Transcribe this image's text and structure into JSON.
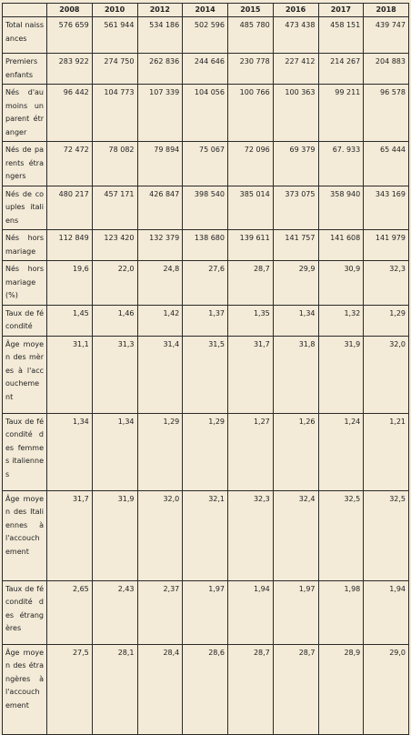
{
  "years": [
    "2008",
    "2010",
    "2012",
    "2014",
    "2015",
    "2016",
    "2017",
    "2018"
  ],
  "rows": [
    {
      "label": "Total naissances",
      "values": [
        "576 659",
        "561 944",
        "534 186",
        "502 596",
        "485 780",
        "473 438",
        "458 151",
        "439 747"
      ]
    },
    {
      "label": "Premiers enfants",
      "values": [
        "283 922",
        "274 750",
        "262 836",
        "244 646",
        "230 778",
        "227 412",
        "214 267",
        "204 883"
      ]
    },
    {
      "label": "Nés d'au moins un parent étranger",
      "values": [
        "96 442",
        "104 773",
        "107 339",
        "104 056",
        "100 766",
        "100 363",
        "99 211",
        "96 578"
      ]
    },
    {
      "label": "Nés de parents étrangers",
      "values": [
        "72 472",
        "78 082",
        "79 894",
        "75 067",
        "72 096",
        "69 379",
        "67. 933",
        "65 444"
      ]
    },
    {
      "label": "Nés de couples italiens",
      "values": [
        "480 217",
        "457 171",
        "426 847",
        "398 540",
        "385 014",
        "373 075",
        "358 940",
        "343 169"
      ]
    },
    {
      "label": "Nés hors mariage",
      "values": [
        "112 849",
        "123 420",
        "132 379",
        "138 680",
        "139 611",
        "141 757",
        "141 608",
        "141 979"
      ]
    },
    {
      "label": "Nés hors mariage (%)",
      "values": [
        "19,6",
        "22,0",
        "24,8",
        "27,6",
        "28,7",
        "29,9",
        "30,9",
        "32,3"
      ]
    },
    {
      "label": "Taux de fécondité",
      "values": [
        "1,45",
        "1,46",
        "1,42",
        "1,37",
        "1,35",
        "1,34",
        "1,32",
        "1,29"
      ]
    },
    {
      "label": "Âge moyen des mères à l'accouchement",
      "values": [
        "31,1",
        "31,3",
        "31,4",
        "31,5",
        "31,7",
        "31,8",
        "31,9",
        "32,0"
      ]
    },
    {
      "label": "Taux de fécondité des femmes italiennes",
      "values": [
        "1,34",
        "1,34",
        "1,29",
        "1,29",
        "1,27",
        "1,26",
        "1,24",
        "1,21"
      ]
    },
    {
      "label": "Âge moyen des Italiennes à l'accouchement",
      "values": [
        "31,7",
        "31,9",
        "32,0",
        "32,1",
        "32,3",
        "32,4",
        "32,5",
        "32,5"
      ]
    },
    {
      "label": "Taux de fécondité des étrangères",
      "values": [
        "2,65",
        "2,43",
        "2,37",
        "1,97",
        "1,94",
        "1,97",
        "1,98",
        "1,94"
      ]
    },
    {
      "label": "Âge moyen des étrangères à l'accouchement",
      "values": [
        "27,5",
        "28,1",
        "28,4",
        "28,6",
        "28,7",
        "28,7",
        "28,9",
        "29,0"
      ]
    }
  ]
}
